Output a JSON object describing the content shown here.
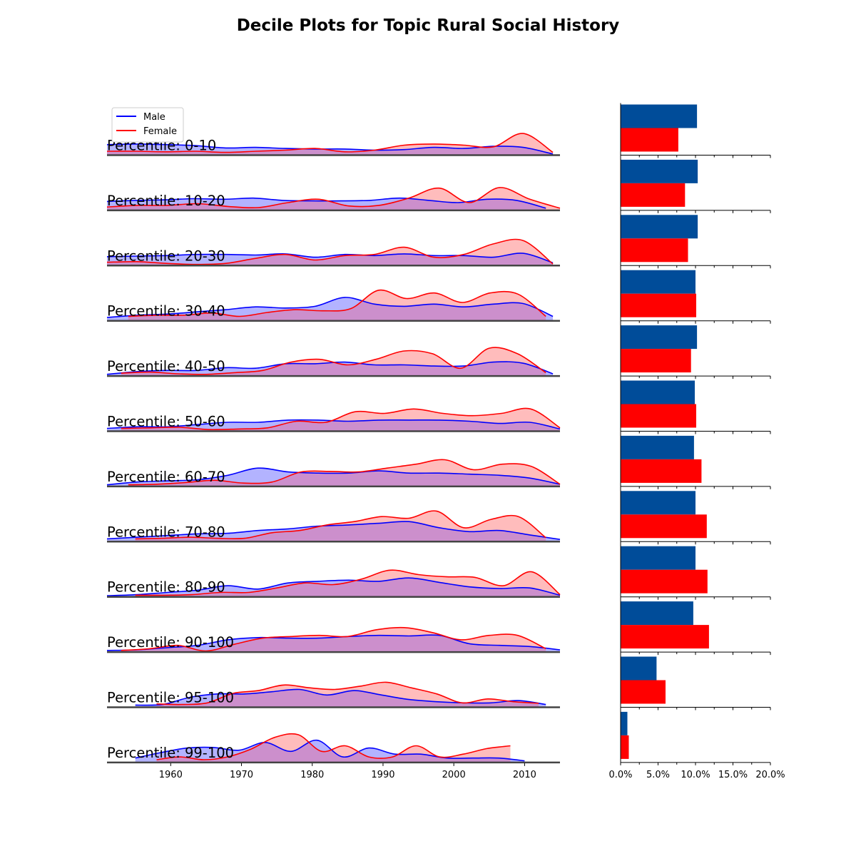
{
  "chart_data": {
    "type": "area",
    "title": "Decile Plots for Topic Rural Social History",
    "legend": {
      "placement": "top-left",
      "entries": [
        "Male",
        "Female"
      ]
    },
    "colors": {
      "male_line": "#0000ff",
      "male_fill": "#b3b3ff",
      "female_line": "#ff0000",
      "female_fill": "#ffbcbc",
      "overlap_fill": "#cc8fcc",
      "male_bar": "#004c99",
      "female_bar": "#ff0000",
      "baseline": "#444444"
    },
    "xaxis": {
      "ticks": [
        1960,
        1970,
        1980,
        1990,
        2000,
        2010
      ],
      "range": [
        1951,
        2015
      ]
    },
    "bar_axis": {
      "ticks": [
        "0.0%",
        "5.0%",
        "10.0%",
        "15.0%",
        "20.0%"
      ],
      "range": [
        0,
        20
      ]
    },
    "rows": [
      {
        "label": "Percentile: 0-10",
        "male_range": [
          1951,
          2014
        ],
        "female_range": [
          1951,
          2014
        ],
        "male_curve": [
          0.19,
          0.2,
          0.19,
          0.17,
          0.13,
          0.14,
          0.12,
          0.11,
          0.11,
          0.09,
          0.1,
          0.14,
          0.12,
          0.16,
          0.14,
          0.02
        ],
        "female_curve": [
          0.07,
          0.07,
          0.06,
          0.07,
          0.05,
          0.07,
          0.09,
          0.12,
          0.06,
          0.09,
          0.18,
          0.2,
          0.18,
          0.15,
          0.39,
          0.05
        ],
        "male_pct": 10.2,
        "female_pct": 7.7
      },
      {
        "label": "Percentile: 10-20",
        "male_range": [
          1951,
          2013
        ],
        "female_range": [
          1951,
          2015
        ],
        "male_curve": [
          0.16,
          0.18,
          0.19,
          0.21,
          0.2,
          0.22,
          0.18,
          0.17,
          0.17,
          0.18,
          0.22,
          0.18,
          0.14,
          0.2,
          0.18,
          0.04
        ],
        "female_curve": [
          0.06,
          0.09,
          0.09,
          0.12,
          0.07,
          0.05,
          0.14,
          0.2,
          0.08,
          0.09,
          0.22,
          0.4,
          0.14,
          0.41,
          0.2,
          0.04
        ],
        "male_pct": 10.3,
        "female_pct": 8.6
      },
      {
        "label": "Percentile: 20-30",
        "male_range": [
          1951,
          2014
        ],
        "female_range": [
          1951,
          2014
        ],
        "male_curve": [
          0.16,
          0.17,
          0.18,
          0.2,
          0.2,
          0.19,
          0.21,
          0.15,
          0.2,
          0.18,
          0.21,
          0.18,
          0.18,
          0.15,
          0.22,
          0.05
        ],
        "female_curve": [
          0.06,
          0.07,
          0.04,
          0.02,
          0.04,
          0.13,
          0.2,
          0.1,
          0.18,
          0.2,
          0.33,
          0.15,
          0.2,
          0.39,
          0.45,
          0.03
        ],
        "male_pct": 10.3,
        "female_pct": 9.0
      },
      {
        "label": "Percentile: 30-40",
        "male_range": [
          1951,
          2014
        ],
        "female_range": [
          1954,
          2013
        ],
        "male_curve": [
          0.06,
          0.1,
          0.12,
          0.16,
          0.2,
          0.25,
          0.23,
          0.26,
          0.42,
          0.3,
          0.26,
          0.3,
          0.25,
          0.3,
          0.31,
          0.08
        ],
        "female_curve": [
          0.08,
          0.1,
          0.1,
          0.14,
          0.08,
          0.15,
          0.2,
          0.18,
          0.22,
          0.55,
          0.4,
          0.5,
          0.33,
          0.5,
          0.48,
          0.08
        ],
        "male_pct": 10.0,
        "female_pct": 10.1
      },
      {
        "label": "Percentile: 40-50",
        "male_range": [
          1951,
          2014
        ],
        "female_range": [
          1953,
          2013
        ],
        "male_curve": [
          0.03,
          0.08,
          0.1,
          0.1,
          0.15,
          0.14,
          0.22,
          0.22,
          0.25,
          0.2,
          0.2,
          0.18,
          0.18,
          0.25,
          0.23,
          0.04
        ],
        "female_curve": [
          0.05,
          0.07,
          0.04,
          0.03,
          0.06,
          0.1,
          0.25,
          0.3,
          0.2,
          0.3,
          0.45,
          0.4,
          0.14,
          0.5,
          0.4,
          0.06
        ],
        "male_pct": 10.2,
        "female_pct": 9.4
      },
      {
        "label": "Percentile: 50-60",
        "male_range": [
          1951,
          2015
        ],
        "female_range": [
          1953,
          2015
        ],
        "male_curve": [
          0.05,
          0.08,
          0.08,
          0.12,
          0.16,
          0.16,
          0.2,
          0.2,
          0.18,
          0.2,
          0.2,
          0.2,
          0.18,
          0.14,
          0.16,
          0.04
        ],
        "female_curve": [
          0.05,
          0.06,
          0.07,
          0.03,
          0.04,
          0.06,
          0.18,
          0.16,
          0.35,
          0.32,
          0.4,
          0.32,
          0.28,
          0.32,
          0.4,
          0.06
        ],
        "male_pct": 9.9,
        "female_pct": 10.1
      },
      {
        "label": "Percentile: 60-70",
        "male_range": [
          1951,
          2015
        ],
        "female_range": [
          1954,
          2015
        ],
        "male_curve": [
          0.03,
          0.08,
          0.1,
          0.12,
          0.2,
          0.33,
          0.26,
          0.24,
          0.24,
          0.28,
          0.24,
          0.24,
          0.22,
          0.2,
          0.15,
          0.04
        ],
        "female_curve": [
          0.03,
          0.04,
          0.07,
          0.11,
          0.06,
          0.08,
          0.26,
          0.27,
          0.26,
          0.33,
          0.4,
          0.48,
          0.3,
          0.4,
          0.36,
          0.04
        ],
        "male_pct": 9.8,
        "female_pct": 10.8
      },
      {
        "label": "Percentile: 70-80",
        "male_range": [
          1951,
          2015
        ],
        "female_range": [
          1955,
          2013
        ],
        "male_curve": [
          0.05,
          0.08,
          0.11,
          0.14,
          0.15,
          0.2,
          0.23,
          0.28,
          0.3,
          0.33,
          0.36,
          0.25,
          0.18,
          0.2,
          0.12,
          0.04
        ],
        "female_curve": [
          0.05,
          0.06,
          0.08,
          0.06,
          0.06,
          0.16,
          0.2,
          0.3,
          0.36,
          0.45,
          0.42,
          0.55,
          0.25,
          0.4,
          0.45,
          0.07
        ],
        "male_pct": 10.0,
        "female_pct": 11.5
      },
      {
        "label": "Percentile: 80-90",
        "male_range": [
          1951,
          2015
        ],
        "female_range": [
          1955,
          2015
        ],
        "male_curve": [
          0.02,
          0.04,
          0.08,
          0.12,
          0.2,
          0.14,
          0.25,
          0.28,
          0.3,
          0.28,
          0.34,
          0.26,
          0.18,
          0.15,
          0.16,
          0.03
        ],
        "female_curve": [
          0.03,
          0.03,
          0.04,
          0.08,
          0.08,
          0.16,
          0.25,
          0.22,
          0.32,
          0.48,
          0.4,
          0.36,
          0.35,
          0.2,
          0.45,
          0.04
        ],
        "male_pct": 10.0,
        "female_pct": 11.6
      },
      {
        "label": "Percentile: 90-100",
        "male_range": [
          1951,
          2015
        ],
        "female_range": [
          1953,
          2013
        ],
        "male_curve": [
          0.03,
          0.04,
          0.08,
          0.12,
          0.22,
          0.26,
          0.25,
          0.25,
          0.28,
          0.3,
          0.29,
          0.3,
          0.15,
          0.12,
          0.1,
          0.04
        ],
        "female_curve": [
          0.03,
          0.06,
          0.12,
          0.02,
          0.14,
          0.25,
          0.28,
          0.3,
          0.28,
          0.4,
          0.44,
          0.35,
          0.22,
          0.3,
          0.3,
          0.06
        ],
        "male_pct": 9.7,
        "female_pct": 11.8
      },
      {
        "label": "Percentile: 95-100",
        "male_range": [
          1955,
          2013
        ],
        "female_range": [
          1958,
          2012
        ],
        "male_curve": [
          0.04,
          0.05,
          0.18,
          0.24,
          0.24,
          0.28,
          0.32,
          0.22,
          0.3,
          0.22,
          0.14,
          0.1,
          0.08,
          0.08,
          0.12,
          0.05
        ],
        "female_curve": [
          0.06,
          0.05,
          0.08,
          0.25,
          0.3,
          0.4,
          0.35,
          0.32,
          0.38,
          0.45,
          0.35,
          0.24,
          0.08,
          0.15,
          0.1,
          0.07
        ],
        "male_pct": 4.8,
        "female_pct": 6.0
      },
      {
        "label": "Percentile: 99-100",
        "male_range": [
          1955,
          2010
        ],
        "female_range": [
          1958,
          2008
        ],
        "male_curve": [
          0.08,
          0.18,
          0.26,
          0.27,
          0.22,
          0.36,
          0.2,
          0.4,
          0.1,
          0.26,
          0.15,
          0.15,
          0.08,
          0.08,
          0.08,
          0.03
        ],
        "female_curve": [
          0.05,
          0.1,
          0.05,
          0.1,
          0.24,
          0.45,
          0.5,
          0.2,
          0.3,
          0.1,
          0.1,
          0.3,
          0.1,
          0.15,
          0.25,
          0.3
        ],
        "male_pct": 0.9,
        "female_pct": 1.1
      }
    ]
  }
}
